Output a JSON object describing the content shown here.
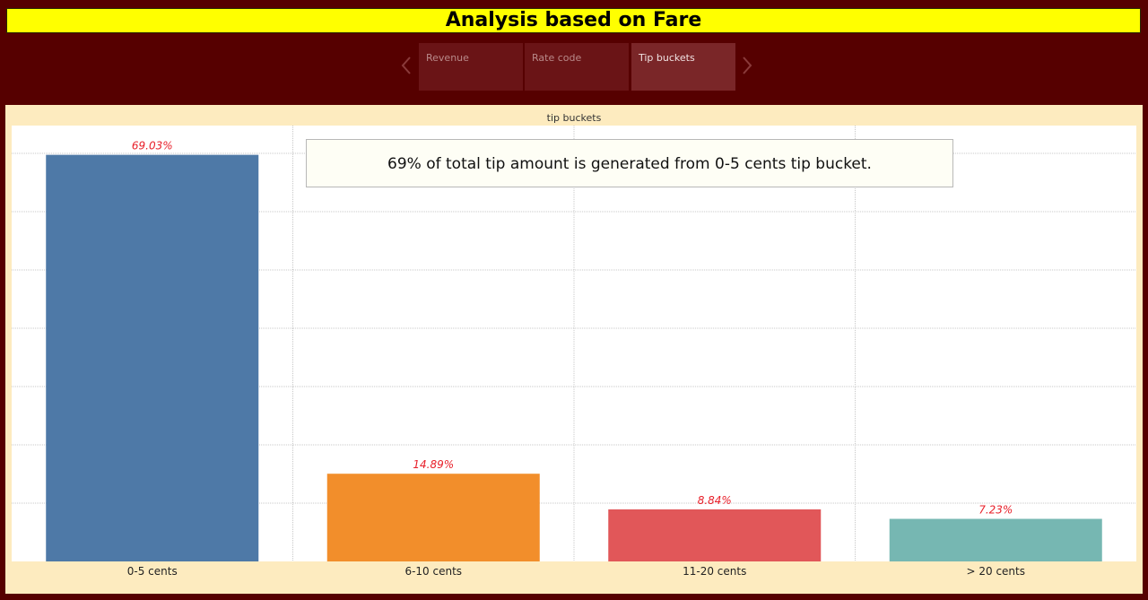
{
  "header": {
    "title": "Analysis based on Fare"
  },
  "tabs": [
    {
      "label": "Revenue",
      "active": false
    },
    {
      "label": "Rate code",
      "active": false
    },
    {
      "label": "Tip buckets",
      "active": true
    }
  ],
  "nav": {
    "prev_icon": "chevron-left-icon",
    "next_icon": "chevron-right-icon"
  },
  "colors": {
    "page_background": "#560000",
    "title_background": "#ffff00",
    "panel_background": "#fdebbf",
    "label_color": "#e8202a",
    "bars": [
      "#4e79a7",
      "#f28e2b",
      "#e15759",
      "#76b7b2"
    ]
  },
  "annotation": {
    "text": "69% of total tip amount is generated from 0-5 cents tip bucket."
  },
  "chart_data": {
    "type": "bar",
    "title": "tip buckets",
    "categories": [
      "0-5 cents",
      "6-10 cents",
      "11-20 cents",
      "> 20 cents"
    ],
    "values": [
      69.03,
      14.89,
      8.84,
      7.23
    ],
    "value_labels": [
      "69.03%",
      "14.89%",
      "8.84%",
      "7.23%"
    ],
    "ylim": [
      0,
      74
    ],
    "grid": true,
    "legend": "none"
  }
}
